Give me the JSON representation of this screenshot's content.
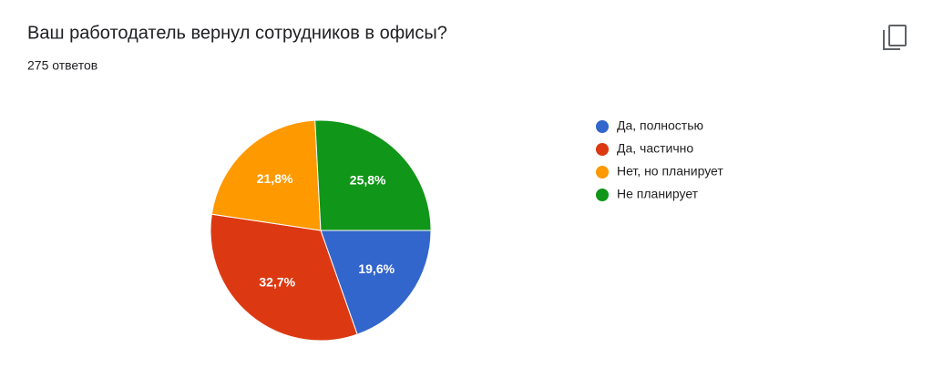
{
  "chart_data": {
    "type": "pie",
    "title": "Ваш работодатель вернул сотрудников в офисы?",
    "subtitle": "275 ответов",
    "categories": [
      "Да, полностью",
      "Да, частично",
      "Нет, но планирует",
      "Не планирует"
    ],
    "values": [
      19.6,
      32.7,
      21.8,
      25.8
    ],
    "value_labels": [
      "19,6%",
      "32,7%",
      "21,8%",
      "25,8%"
    ],
    "colors": [
      "#3366cc",
      "#dc3912",
      "#ff9900",
      "#109618"
    ],
    "legend": "right"
  }
}
